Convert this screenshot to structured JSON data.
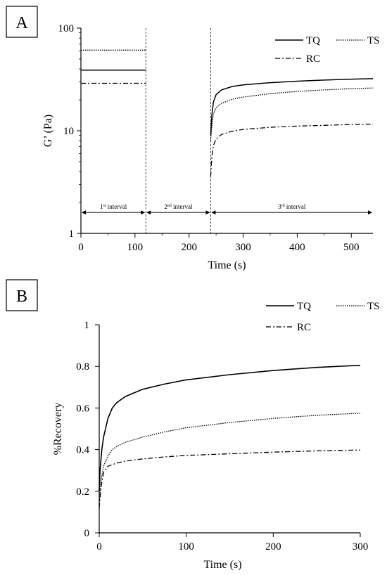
{
  "chart_data": [
    {
      "panel": "A",
      "type": "line",
      "xlabel": "Time (s)",
      "ylabel": "G’ (Pa)",
      "y_scale": "log",
      "xlim": [
        0,
        540
      ],
      "ylim": [
        1,
        100
      ],
      "x_ticks": [
        0,
        100,
        200,
        300,
        400,
        500
      ],
      "y_ticks": [
        1,
        10,
        100
      ],
      "grid": false,
      "legend_position": "top-right",
      "dividers_x": [
        120,
        240
      ],
      "intervals": [
        {
          "label": "1st interval",
          "base": "1",
          "sup": "st",
          "rest": " interval",
          "from": 0,
          "to": 120
        },
        {
          "label": "2nd interval",
          "base": "2",
          "sup": "nd",
          "rest": " interval",
          "from": 120,
          "to": 240
        },
        {
          "label": "3rd interval",
          "base": "3",
          "sup": "rd",
          "rest": " interval",
          "from": 240,
          "to": 540
        }
      ],
      "series": [
        {
          "name": "TQ",
          "style": "solid",
          "segments": [
            [
              [
                0,
                39
              ],
              [
                120,
                39
              ]
            ],
            [
              [
                240,
                9.0
              ],
              [
                242,
                14
              ],
              [
                245,
                19
              ],
              [
                250,
                22.5
              ],
              [
                260,
                25
              ],
              [
                280,
                27
              ],
              [
                300,
                28
              ],
              [
                350,
                29.4
              ],
              [
                400,
                30.4
              ],
              [
                450,
                31.2
              ],
              [
                500,
                31.8
              ],
              [
                540,
                32.2
              ]
            ]
          ]
        },
        {
          "name": "TS",
          "style": "dotted",
          "segments": [
            [
              [
                0,
                61
              ],
              [
                120,
                61
              ]
            ],
            [
              [
                240,
                8.0
              ],
              [
                242,
                11
              ],
              [
                245,
                14.5
              ],
              [
                250,
                16.8
              ],
              [
                260,
                18.5
              ],
              [
                280,
                20.3
              ],
              [
                300,
                21.3
              ],
              [
                350,
                23.0
              ],
              [
                400,
                24.2
              ],
              [
                450,
                25.0
              ],
              [
                500,
                25.7
              ],
              [
                540,
                26.1
              ]
            ]
          ]
        },
        {
          "name": "RC",
          "style": "dashdot",
          "segments": [
            [
              [
                0,
                29
              ],
              [
                120,
                29
              ]
            ],
            [
              [
                240,
                3.6
              ],
              [
                242,
                5.5
              ],
              [
                245,
                7.2
              ],
              [
                250,
                8.3
              ],
              [
                260,
                9.2
              ],
              [
                280,
                9.9
              ],
              [
                300,
                10.3
              ],
              [
                350,
                10.8
              ],
              [
                400,
                11.1
              ],
              [
                450,
                11.3
              ],
              [
                500,
                11.5
              ],
              [
                540,
                11.6
              ]
            ]
          ]
        }
      ]
    },
    {
      "panel": "B",
      "type": "line",
      "xlabel": "Time (s)",
      "ylabel": "%Recovery",
      "xlim": [
        0,
        300
      ],
      "ylim": [
        0,
        1
      ],
      "x_ticks": [
        0,
        100,
        200,
        300
      ],
      "y_ticks": [
        0,
        0.2,
        0.4,
        0.6,
        0.8,
        1
      ],
      "grid": false,
      "legend_position": "top",
      "series": [
        {
          "name": "TQ",
          "style": "solid",
          "points": [
            [
              0,
              0.2
            ],
            [
              1,
              0.3
            ],
            [
              3,
              0.4
            ],
            [
              5,
              0.46
            ],
            [
              10,
              0.55
            ],
            [
              15,
              0.6
            ],
            [
              20,
              0.625
            ],
            [
              30,
              0.655
            ],
            [
              50,
              0.69
            ],
            [
              75,
              0.715
            ],
            [
              100,
              0.735
            ],
            [
              150,
              0.76
            ],
            [
              200,
              0.78
            ],
            [
              250,
              0.795
            ],
            [
              300,
              0.805
            ]
          ]
        },
        {
          "name": "TS",
          "style": "dotted",
          "points": [
            [
              0,
              0.15
            ],
            [
              2,
              0.25
            ],
            [
              5,
              0.32
            ],
            [
              10,
              0.37
            ],
            [
              15,
              0.4
            ],
            [
              20,
              0.415
            ],
            [
              30,
              0.435
            ],
            [
              50,
              0.46
            ],
            [
              75,
              0.485
            ],
            [
              100,
              0.505
            ],
            [
              150,
              0.53
            ],
            [
              200,
              0.55
            ],
            [
              250,
              0.565
            ],
            [
              300,
              0.575
            ]
          ]
        },
        {
          "name": "RC",
          "style": "dashdot",
          "points": [
            [
              0,
              0.12
            ],
            [
              2,
              0.22
            ],
            [
              5,
              0.29
            ],
            [
              10,
              0.32
            ],
            [
              20,
              0.335
            ],
            [
              30,
              0.345
            ],
            [
              50,
              0.355
            ],
            [
              75,
              0.365
            ],
            [
              100,
              0.372
            ],
            [
              150,
              0.38
            ],
            [
              200,
              0.388
            ],
            [
              250,
              0.394
            ],
            [
              300,
              0.398
            ]
          ]
        }
      ]
    }
  ]
}
